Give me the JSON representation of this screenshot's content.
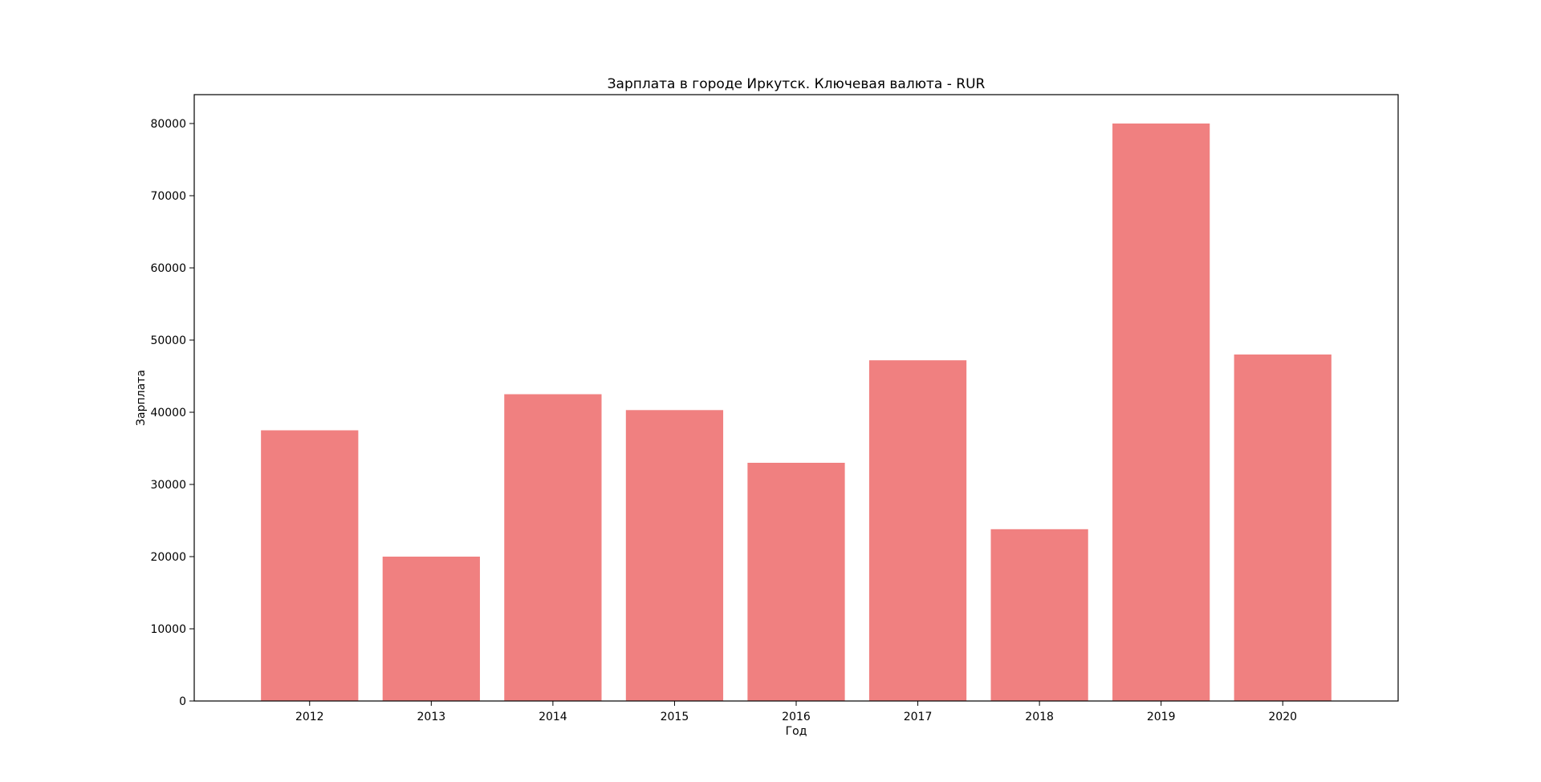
{
  "chart_data": {
    "type": "bar",
    "title": "Зарплата в городе Иркутск. Ключевая валюта - RUR",
    "xlabel": "Год",
    "ylabel": "Зарплата",
    "categories": [
      "2012",
      "2013",
      "2014",
      "2015",
      "2016",
      "2017",
      "2018",
      "2019",
      "2020"
    ],
    "values": [
      37500,
      20000,
      42500,
      40300,
      33000,
      47200,
      23800,
      80000,
      48000
    ],
    "ylim": [
      0,
      84000
    ],
    "yticks": [
      0,
      10000,
      20000,
      30000,
      40000,
      50000,
      60000,
      70000,
      80000
    ],
    "bar_color": "#f08080",
    "grid": false,
    "legend": "none"
  }
}
